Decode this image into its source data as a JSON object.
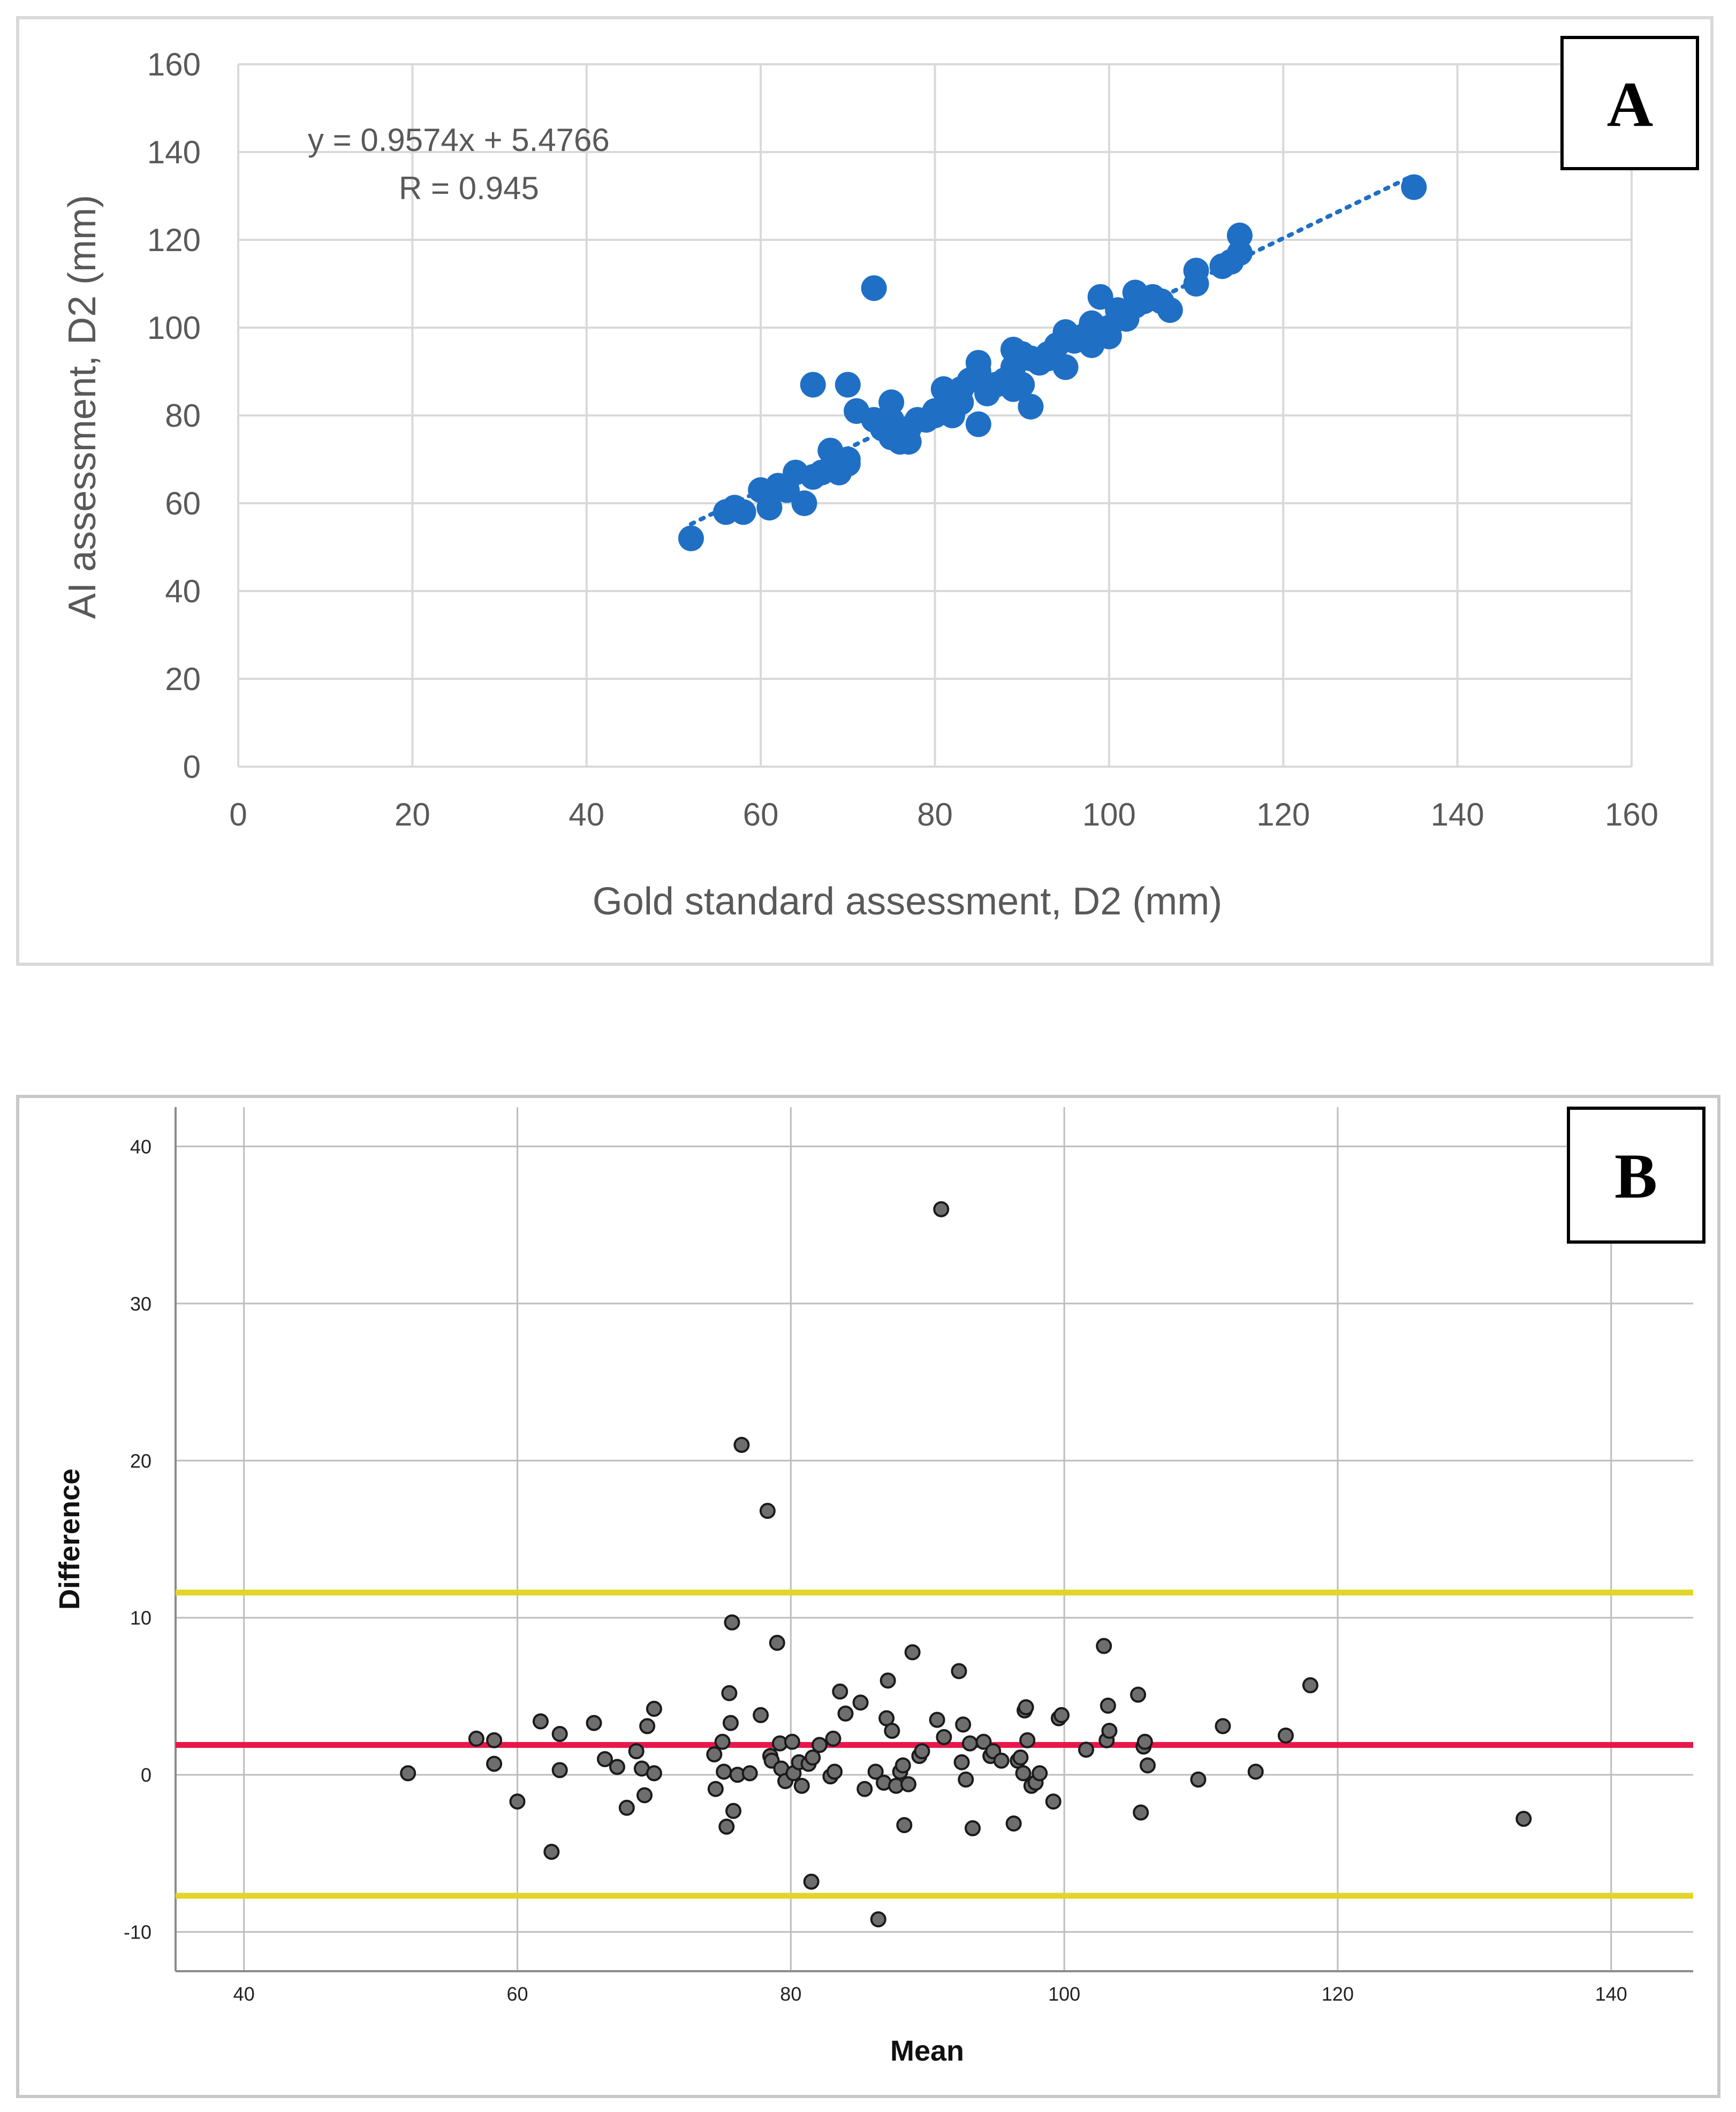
{
  "chart_data": [
    {
      "type": "scatter",
      "panel": "A",
      "xlabel": "Gold standard assessment, D2 (mm)",
      "ylabel": "AI assessment, D2 (mm)",
      "xlim": [
        0,
        160
      ],
      "ylim": [
        0,
        160
      ],
      "x_ticks": [
        "0",
        "20",
        "40",
        "60",
        "80",
        "100",
        "120",
        "140",
        "160"
      ],
      "y_ticks": [
        "0",
        "20",
        "40",
        "60",
        "80",
        "100",
        "120",
        "140",
        "160"
      ],
      "equation": "y = 0.9574x + 5.4766",
      "r_label": "R = 0.945",
      "trendline": {
        "slope": 0.9574,
        "intercept": 5.4766,
        "x_range": [
          52,
          135
        ]
      },
      "marker_color": "#1f6fc5",
      "points": [
        [
          52,
          52
        ],
        [
          56,
          58
        ],
        [
          57,
          59
        ],
        [
          58,
          58
        ],
        [
          60,
          63
        ],
        [
          61,
          59
        ],
        [
          62,
          64
        ],
        [
          63,
          63
        ],
        [
          64,
          67
        ],
        [
          65,
          60
        ],
        [
          66,
          66
        ],
        [
          67,
          67
        ],
        [
          68,
          68
        ],
        [
          68,
          72
        ],
        [
          69,
          69
        ],
        [
          69,
          67
        ],
        [
          70,
          69
        ],
        [
          70,
          70
        ],
        [
          70,
          87
        ],
        [
          66,
          87
        ],
        [
          71,
          81
        ],
        [
          73,
          79
        ],
        [
          73,
          109
        ],
        [
          74,
          77
        ],
        [
          75,
          75
        ],
        [
          75,
          79
        ],
        [
          75,
          83
        ],
        [
          76,
          74
        ],
        [
          77,
          77
        ],
        [
          77,
          74
        ],
        [
          78,
          79
        ],
        [
          79,
          79
        ],
        [
          80,
          80
        ],
        [
          80,
          81
        ],
        [
          81,
          82
        ],
        [
          82,
          80
        ],
        [
          81,
          86
        ],
        [
          82,
          84
        ],
        [
          83,
          86
        ],
        [
          83,
          83
        ],
        [
          84,
          88
        ],
        [
          85,
          90
        ],
        [
          85,
          78
        ],
        [
          85,
          92
        ],
        [
          86,
          86
        ],
        [
          86,
          85
        ],
        [
          87,
          87
        ],
        [
          88,
          88
        ],
        [
          89,
          86
        ],
        [
          89,
          91
        ],
        [
          89,
          95
        ],
        [
          90,
          94
        ],
        [
          90,
          87
        ],
        [
          91,
          82
        ],
        [
          91,
          93
        ],
        [
          92,
          92
        ],
        [
          93,
          93
        ],
        [
          93,
          94
        ],
        [
          94,
          96
        ],
        [
          95,
          91
        ],
        [
          95,
          99
        ],
        [
          96,
          97
        ],
        [
          97,
          98
        ],
        [
          98,
          96
        ],
        [
          98,
          101
        ],
        [
          98,
          100
        ],
        [
          99,
          107
        ],
        [
          100,
          98
        ],
        [
          100,
          100
        ],
        [
          101,
          104
        ],
        [
          102,
          102
        ],
        [
          103,
          105
        ],
        [
          103,
          108
        ],
        [
          104,
          106
        ],
        [
          105,
          107
        ],
        [
          106,
          106
        ],
        [
          107,
          104
        ],
        [
          110,
          110
        ],
        [
          110,
          113
        ],
        [
          113,
          114
        ],
        [
          114,
          115
        ],
        [
          115,
          117
        ],
        [
          115,
          121
        ],
        [
          135,
          132
        ]
      ]
    },
    {
      "type": "scatter",
      "panel": "B",
      "xlabel": "Mean",
      "ylabel": "Difference",
      "xlim": [
        35,
        146
      ],
      "ylim": [
        -12.5,
        42.5
      ],
      "x_ticks": [
        "40",
        "60",
        "80",
        "100",
        "120",
        "140"
      ],
      "y_ticks": [
        "-10",
        "0",
        "10",
        "20",
        "30",
        "40"
      ],
      "reference_lines": [
        {
          "name": "upper limit of agreement",
          "y": 11.6,
          "color": "#e2d52a"
        },
        {
          "name": "mean difference",
          "y": 1.9,
          "color": "#e8174a"
        },
        {
          "name": "lower limit of agreement",
          "y": -7.7,
          "color": "#e2d52a"
        }
      ],
      "marker_color": "#6e6e6e",
      "points": [
        [
          52,
          0.1
        ],
        [
          57,
          2.3
        ],
        [
          58.3,
          2.2
        ],
        [
          58.3,
          0.7
        ],
        [
          60,
          -1.7
        ],
        [
          61.7,
          3.4
        ],
        [
          62.5,
          -4.9
        ],
        [
          63.1,
          2.6
        ],
        [
          63.1,
          0.3
        ],
        [
          65.6,
          3.3
        ],
        [
          66.4,
          1.0
        ],
        [
          67.3,
          0.5
        ],
        [
          68,
          -2.1
        ],
        [
          68.7,
          1.5
        ],
        [
          69.1,
          0.4
        ],
        [
          69.3,
          -1.3
        ],
        [
          69.5,
          3.1
        ],
        [
          70,
          4.2
        ],
        [
          70,
          0.1
        ],
        [
          74.4,
          1.3
        ],
        [
          74.5,
          -0.9
        ],
        [
          75,
          2.1
        ],
        [
          75.1,
          0.2
        ],
        [
          75.3,
          -3.3
        ],
        [
          75.5,
          5.2
        ],
        [
          75.6,
          3.3
        ],
        [
          75.7,
          9.7
        ],
        [
          75.8,
          -2.3
        ],
        [
          76.1,
          0.0
        ],
        [
          76.4,
          21.0
        ],
        [
          77,
          0.1
        ],
        [
          77.8,
          3.8
        ],
        [
          78.3,
          16.8
        ],
        [
          78.5,
          1.2
        ],
        [
          78.6,
          0.9
        ],
        [
          79,
          8.4
        ],
        [
          79.2,
          2.0
        ],
        [
          79.3,
          0.4
        ],
        [
          79.6,
          -0.4
        ],
        [
          80.1,
          2.1
        ],
        [
          80.2,
          0.1
        ],
        [
          80.6,
          0.8
        ],
        [
          80.8,
          -0.7
        ],
        [
          81.3,
          0.7
        ],
        [
          81.5,
          -6.8
        ],
        [
          81.6,
          1.1
        ],
        [
          82.1,
          1.9
        ],
        [
          82.9,
          -0.1
        ],
        [
          83.1,
          2.3
        ],
        [
          83.2,
          0.2
        ],
        [
          83.6,
          5.3
        ],
        [
          84,
          3.9
        ],
        [
          85.1,
          4.6
        ],
        [
          85.4,
          -0.9
        ],
        [
          86.2,
          0.2
        ],
        [
          86.4,
          -9.2
        ],
        [
          86.8,
          -0.5
        ],
        [
          87,
          3.6
        ],
        [
          87.1,
          6.0
        ],
        [
          87.4,
          2.8
        ],
        [
          87.7,
          -0.7
        ],
        [
          88,
          0.2
        ],
        [
          88.2,
          0.6
        ],
        [
          88.3,
          -3.2
        ],
        [
          88.6,
          -0.6
        ],
        [
          88.9,
          7.8
        ],
        [
          89.4,
          1.2
        ],
        [
          89.6,
          1.5
        ],
        [
          90.7,
          3.5
        ],
        [
          91,
          36.0
        ],
        [
          91.2,
          2.4
        ],
        [
          92.3,
          6.6
        ],
        [
          92.5,
          0.8
        ],
        [
          92.6,
          3.2
        ],
        [
          92.8,
          -0.3
        ],
        [
          93.1,
          2.0
        ],
        [
          93.3,
          -3.4
        ],
        [
          94.1,
          2.1
        ],
        [
          94.6,
          1.2
        ],
        [
          94.8,
          1.5
        ],
        [
          95.4,
          0.9
        ],
        [
          96.3,
          -3.1
        ],
        [
          96.6,
          0.9
        ],
        [
          96.8,
          1.1
        ],
        [
          97,
          0.1
        ],
        [
          97.1,
          4.1
        ],
        [
          97.2,
          4.3
        ],
        [
          97.3,
          2.2
        ],
        [
          97.6,
          -0.7
        ],
        [
          97.9,
          -0.5
        ],
        [
          98.2,
          0.1
        ],
        [
          99.2,
          -1.7
        ],
        [
          99.6,
          3.6
        ],
        [
          99.8,
          3.8
        ],
        [
          101.6,
          1.6
        ],
        [
          102.9,
          8.2
        ],
        [
          103.1,
          2.2
        ],
        [
          103.2,
          4.4
        ],
        [
          103.3,
          2.8
        ],
        [
          105.4,
          5.1
        ],
        [
          105.6,
          -2.4
        ],
        [
          105.8,
          1.8
        ],
        [
          105.9,
          2.1
        ],
        [
          106.1,
          0.6
        ],
        [
          109.8,
          -0.3
        ],
        [
          111.6,
          3.1
        ],
        [
          114,
          0.2
        ],
        [
          116.2,
          2.5
        ],
        [
          118,
          5.7
        ],
        [
          133.6,
          -2.8
        ]
      ]
    }
  ],
  "panels": {
    "a": {
      "label": "A"
    },
    "b": {
      "label": "B"
    }
  }
}
